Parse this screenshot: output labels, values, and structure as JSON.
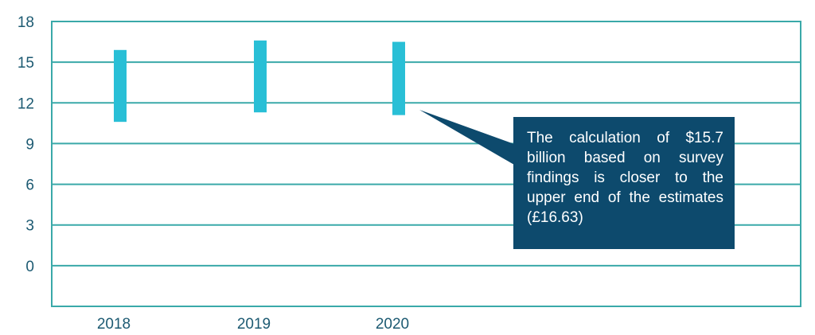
{
  "chart_data": {
    "type": "range-bar",
    "categories": [
      "2018",
      "2019",
      "2020"
    ],
    "series": [
      {
        "low": [
          10.6,
          11.3,
          11.1
        ],
        "high": [
          15.9,
          16.6,
          16.5
        ]
      }
    ],
    "yticks": [
      "18",
      "15",
      "12",
      "9",
      "6",
      "3",
      "0"
    ],
    "ylim": [
      -3,
      18
    ],
    "grid": true,
    "title": "",
    "xlabel": "",
    "ylabel": "",
    "annotation": "The calculation of $15.7 billion based on survey findings is closer to the upper end of the estimates (£16.63)",
    "colors": {
      "bars": "#29bfd6",
      "frame": "#3aa9a9",
      "tick_text": "#1c5a72",
      "callout_fill": "#0d4a6d"
    }
  }
}
